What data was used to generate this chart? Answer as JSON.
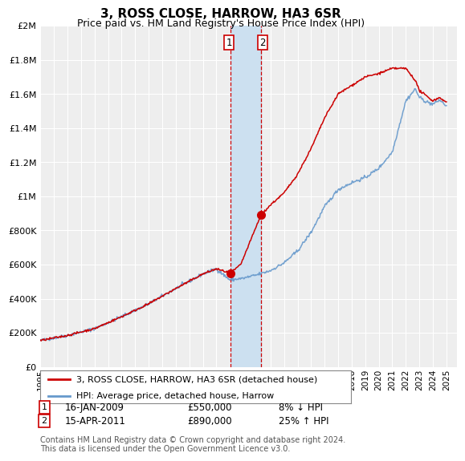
{
  "title": "3, ROSS CLOSE, HARROW, HA3 6SR",
  "subtitle": "Price paid vs. HM Land Registry's House Price Index (HPI)",
  "ylabel_ticks": [
    "£0",
    "£200K",
    "£400K",
    "£600K",
    "£800K",
    "£1M",
    "£1.2M",
    "£1.4M",
    "£1.6M",
    "£1.8M",
    "£2M"
  ],
  "ytick_values": [
    0,
    200000,
    400000,
    600000,
    800000,
    1000000,
    1200000,
    1400000,
    1600000,
    1800000,
    2000000
  ],
  "ylim": [
    0,
    2000000
  ],
  "xlim_start": 1995.0,
  "xlim_end": 2025.8,
  "transaction1": {
    "date": "16-JAN-2009",
    "price": 550000,
    "hpi_diff": "8% ↓ HPI",
    "year": 2009.04
  },
  "transaction2": {
    "date": "15-APR-2011",
    "price": 890000,
    "hpi_diff": "25% ↑ HPI",
    "year": 2011.29
  },
  "legend_property": "3, ROSS CLOSE, HARROW, HA3 6SR (detached house)",
  "legend_hpi": "HPI: Average price, detached house, Harrow",
  "footer": "Contains HM Land Registry data © Crown copyright and database right 2024.\nThis data is licensed under the Open Government Licence v3.0.",
  "line_color_property": "#cc0000",
  "line_color_hpi": "#6699cc",
  "shade_color": "#cce0f0",
  "marker_color": "#cc0000",
  "background_color": "#ffffff",
  "plot_bg_color": "#eeeeee",
  "hpi_control_years": [
    1995,
    1997,
    1999,
    2001,
    2003,
    2005,
    2007,
    2008,
    2009,
    2010,
    2011,
    2012,
    2013,
    2014,
    2015,
    2016,
    2017,
    2018,
    2019,
    2020,
    2021,
    2022,
    2022.7,
    2023,
    2023.5,
    2024,
    2024.5,
    2025
  ],
  "hpi_control_vals": [
    155000,
    185000,
    225000,
    295000,
    370000,
    460000,
    545000,
    575000,
    510000,
    520000,
    540000,
    565000,
    610000,
    680000,
    790000,
    940000,
    1040000,
    1080000,
    1110000,
    1165000,
    1260000,
    1560000,
    1630000,
    1580000,
    1555000,
    1540000,
    1565000,
    1530000
  ],
  "prop_control_years": [
    1995,
    1997,
    1999,
    2001,
    2003,
    2005,
    2007,
    2008,
    2009.04,
    2009.8,
    2011.29,
    2012,
    2013,
    2014,
    2015,
    2016,
    2017,
    2018,
    2019,
    2020,
    2021,
    2022,
    2022.7,
    2023,
    2023.5,
    2024,
    2024.5,
    2025
  ],
  "prop_control_vals": [
    155000,
    185000,
    225000,
    295000,
    370000,
    460000,
    545000,
    575000,
    550000,
    600000,
    890000,
    950000,
    1020000,
    1130000,
    1280000,
    1460000,
    1600000,
    1650000,
    1700000,
    1720000,
    1750000,
    1750000,
    1680000,
    1620000,
    1590000,
    1560000,
    1580000,
    1550000
  ]
}
